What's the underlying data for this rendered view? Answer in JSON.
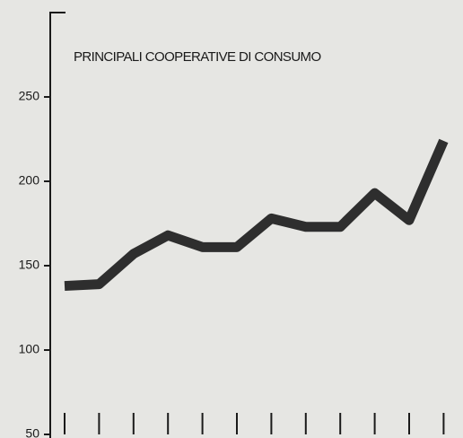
{
  "chart_data": {
    "type": "line",
    "title": "PRINCIPALI COOPERATIVE DI CONSUMO",
    "categories": [
      null,
      null,
      null,
      null,
      null,
      null,
      null,
      null,
      null,
      null,
      null,
      null
    ],
    "series": [
      {
        "name": null,
        "color": "#2e2e2e",
        "values": [
          138,
          139,
          157,
          168,
          161,
          161,
          178,
          173,
          173,
          193,
          177,
          224
        ]
      }
    ],
    "ylim": [
      50,
      300
    ],
    "yticks": [
      50,
      100,
      150,
      200,
      250
    ],
    "grid": false
  }
}
